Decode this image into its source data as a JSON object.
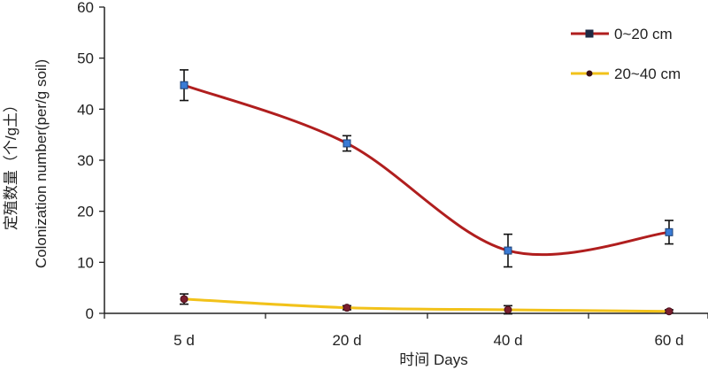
{
  "chart_data": {
    "type": "line",
    "categories": [
      "5 d",
      "20 d",
      "40 d",
      "60 d"
    ],
    "xlabel": "时间 Days",
    "ylabel_line1": "定殖数量（个/g土）",
    "ylabel_line2": "Colonization number(per/g soil)",
    "ylim": [
      0,
      60
    ],
    "yticks": [
      "0",
      "10",
      "20",
      "30",
      "40",
      "50",
      "60"
    ],
    "grid": false,
    "legend_position": "top-right",
    "series": [
      {
        "name": "0~20 cm",
        "color": "#b01e1e",
        "marker": "square",
        "marker_color": "#3a7bd5",
        "values": [
          44.7,
          33.3,
          12.3,
          15.9
        ],
        "errors": [
          3.0,
          1.5,
          3.2,
          2.3
        ]
      },
      {
        "name": "20~40 cm",
        "color": "#f2c21a",
        "marker": "circle",
        "marker_color": "#7a1e2e",
        "values": [
          2.8,
          1.1,
          0.7,
          0.4
        ],
        "errors": [
          1.0,
          0.4,
          0.8,
          0.3
        ]
      }
    ]
  }
}
